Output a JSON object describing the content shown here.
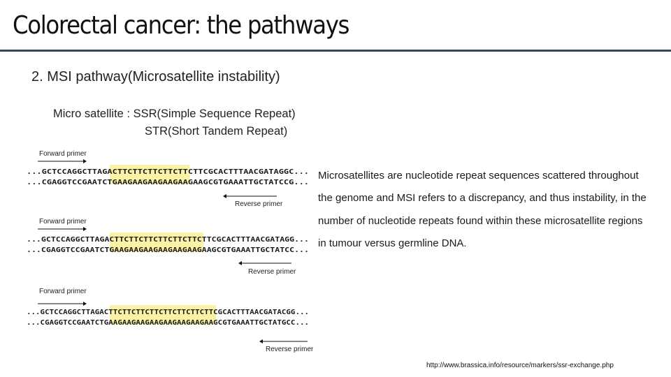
{
  "slide": {
    "title": "Colorectal cancer: the pathways",
    "subtitle": "2. MSI pathway(Microsatellite instability)",
    "definition": {
      "line1": "Micro satellite : SSR(Simple Sequence Repeat)",
      "line2": "STR(Short Tandem Repeat)"
    },
    "description": "Microsatellites are nucleotide repeat sequences scattered throughout the genome and MSI refers to a discrepancy, and thus instability, in the number of nucleotide repeats found within these microsatellite regions in tumour versus germline DNA.",
    "source": "http://www.brassica.info/resource/markers/ssr-exchange.php"
  },
  "figure": {
    "panels": [
      {
        "forward_label": "Forward primer",
        "reverse_label": "Reverse primer",
        "top_seq": "...GCTCCAGGCTTAGACTTCTTCTTCTTCTTCTTCGCACTTTAACGATAGGC...",
        "bottom_seq": "...CGAGGTCCGAATCTGAAGAAGAAGAAGAAGAAGCGTGAAATTGCTATCCG..."
      },
      {
        "forward_label": "Forward primer",
        "reverse_label": "Reverse primer",
        "top_seq": "...GCTCCAGGCTTAGACTTCTTCTTCTTCTTCTTCTTCGCACTTTAACGATAGG...",
        "bottom_seq": "...CGAGGTCCGAATCTGAAGAAGAAGAAGAAGAAGAAGCGTGAAATTGCTATCC..."
      },
      {
        "forward_label": "Forward primer",
        "reverse_label": "Reverse primer",
        "top_seq": "...GCTCCAGGCTTAGACTTCTTCTTCTTCTTCTTCTTCTTCGCACTTTAACGATACGG...",
        "bottom_seq": "...CGAGGTCCGAATCTGAAGAAGAAGAAGAAGAAGAAGAAGCGTGAAATTGCTATGCC..."
      }
    ]
  }
}
